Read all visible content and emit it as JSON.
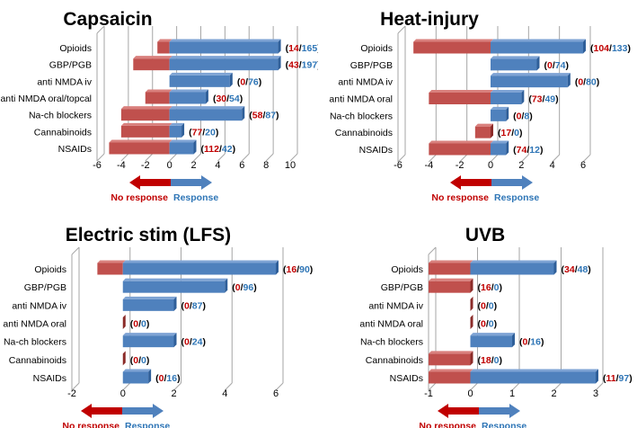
{
  "colors": {
    "no_response": "#c0504d",
    "response": "#4f81bd",
    "no_response_text": "#c00000",
    "response_text": "#2e75b6",
    "grid": "#a6a6a6"
  },
  "legend": {
    "no_response": "No response",
    "response": "Response"
  },
  "chart_data": [
    {
      "type": "bar",
      "orientation": "horizontal",
      "title": "Capsaicin",
      "xlim": [
        -6,
        10
      ],
      "ticks": [
        -6,
        -4,
        -2,
        0,
        2,
        4,
        6,
        8,
        10
      ],
      "categories": [
        "Opioids",
        "GBP/PGB",
        "anti NMDA iv",
        "anti NMDA oral/topcal",
        "Na-ch blockers",
        "Cannabinoids",
        "NSAIDs"
      ],
      "series": [
        {
          "name": "No response",
          "values": [
            -1,
            -3,
            0,
            -2,
            -4,
            -4,
            -5
          ]
        },
        {
          "name": "Response",
          "values": [
            9,
            9,
            5,
            3,
            6,
            1,
            2
          ]
        }
      ],
      "annotations": [
        [
          "14",
          "165"
        ],
        [
          "43",
          "197"
        ],
        [
          "0",
          "76"
        ],
        [
          "30",
          "54"
        ],
        [
          "58",
          "87"
        ],
        [
          "77",
          "20"
        ],
        [
          "112",
          "42"
        ]
      ]
    },
    {
      "type": "bar",
      "orientation": "horizontal",
      "title": "Heat-injury",
      "xlim": [
        -6,
        6
      ],
      "ticks": [
        -6,
        -4,
        -2,
        0,
        2,
        4,
        6
      ],
      "categories": [
        "Opioids",
        "GBP/PGB",
        "anti NMDA iv",
        "anti NMDA oral",
        "Na-ch blockers",
        "Cannabinoids",
        "NSAIDs"
      ],
      "series": [
        {
          "name": "No response",
          "values": [
            -5,
            0,
            0,
            -4,
            0,
            -1,
            -4
          ]
        },
        {
          "name": "Response",
          "values": [
            6,
            3,
            5,
            2,
            1,
            0,
            1
          ]
        }
      ],
      "annotations": [
        [
          "104",
          "133"
        ],
        [
          "0",
          "74"
        ],
        [
          "0",
          "80"
        ],
        [
          "73",
          "49"
        ],
        [
          "0",
          "8"
        ],
        [
          "17",
          "0"
        ],
        [
          "74",
          "12"
        ]
      ]
    },
    {
      "type": "bar",
      "orientation": "horizontal",
      "title": "Electric stim  (LFS)",
      "xlim": [
        -2,
        6
      ],
      "ticks": [
        -2,
        0,
        2,
        4,
        6
      ],
      "categories": [
        "Opioids",
        "GBP/PGB",
        "anti NMDA iv",
        "anti NMDA oral",
        "Na-ch blockers",
        "Cannabinoids",
        "NSAIDs"
      ],
      "series": [
        {
          "name": "No response",
          "values": [
            -1,
            0,
            0,
            0,
            0,
            0,
            0
          ]
        },
        {
          "name": "Response",
          "values": [
            6,
            4,
            2,
            0,
            2,
            0,
            1
          ]
        }
      ],
      "annotations": [
        [
          "16",
          "90"
        ],
        [
          "0",
          "96"
        ],
        [
          "0",
          "87"
        ],
        [
          "0",
          "0"
        ],
        [
          "0",
          "24"
        ],
        [
          "0",
          "0"
        ],
        [
          "0",
          "16"
        ]
      ]
    },
    {
      "type": "bar",
      "orientation": "horizontal",
      "title": "UVB",
      "xlim": [
        -1,
        3
      ],
      "ticks": [
        -1,
        0,
        1,
        2,
        3
      ],
      "categories": [
        "Opioids",
        "GBP/PGB",
        "anti NMDA iv",
        "anti NMDA oral",
        "Na-ch blockers",
        "Cannabinoids",
        "NSAIDs"
      ],
      "series": [
        {
          "name": "No response",
          "values": [
            -1,
            -1,
            0,
            0,
            0,
            -1,
            -1
          ]
        },
        {
          "name": "Response",
          "values": [
            2,
            0,
            0,
            0,
            1,
            0,
            3
          ]
        }
      ],
      "annotations": [
        [
          "34",
          "48"
        ],
        [
          "16",
          "0"
        ],
        [
          "0",
          "0"
        ],
        [
          "0",
          "0"
        ],
        [
          "0",
          "16"
        ],
        [
          "18",
          "0"
        ],
        [
          "11",
          "97"
        ]
      ]
    }
  ]
}
